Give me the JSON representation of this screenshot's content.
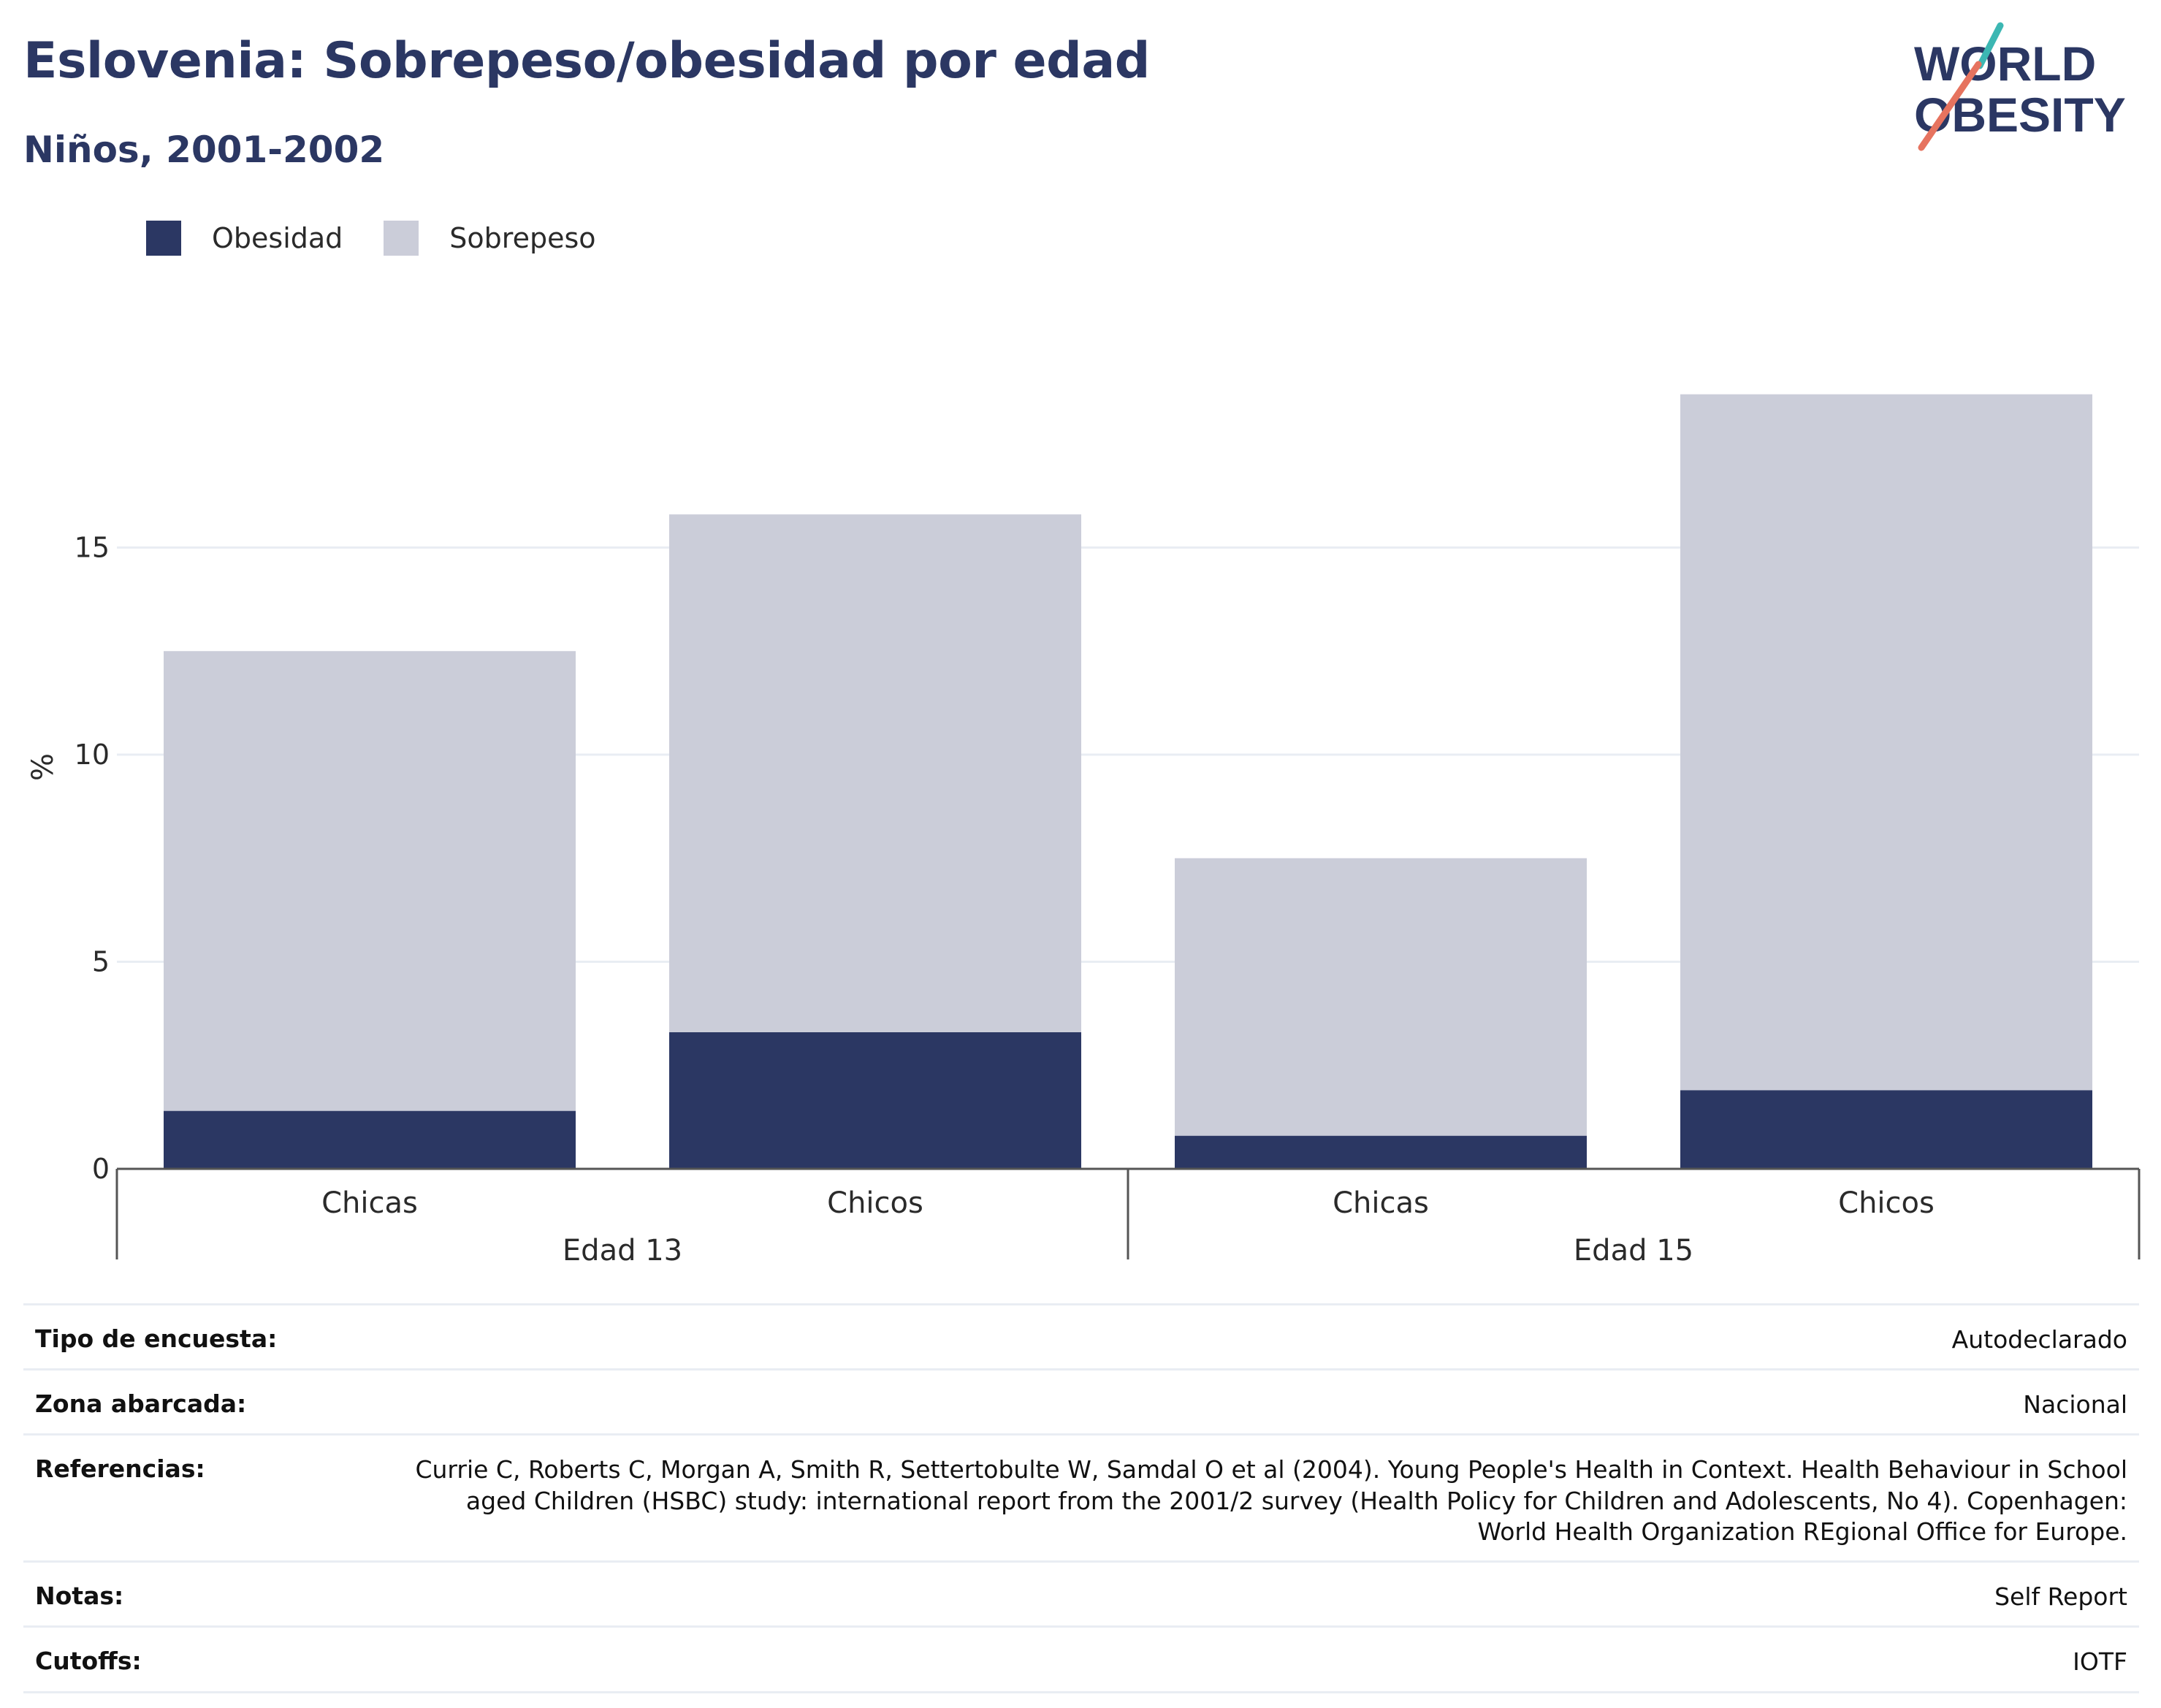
{
  "header": {
    "title": "Eslovenia: Sobrepeso/obesidad por edad",
    "subtitle": "Niños, 2001-2002"
  },
  "logo": {
    "line1": "WORLD",
    "line2": "OBESITY"
  },
  "colors": {
    "obesidad": "#2b3763",
    "sobrepeso": "#cbcdd9",
    "text": "#2b3763",
    "grid": "#e9edf3",
    "logo_teal": "#3cb7b3",
    "logo_coral": "#e6735f"
  },
  "chart_data": {
    "type": "bar",
    "stacked": true,
    "ylabel": "%",
    "ylim": [
      0,
      20
    ],
    "yticks": [
      0,
      5,
      10,
      15
    ],
    "grid": true,
    "legend_position": "top-left",
    "categories": [
      "Chicas",
      "Chicos",
      "Chicas",
      "Chicos"
    ],
    "groups": [
      {
        "label": "Edad 13",
        "categories": [
          "Chicas",
          "Chicos"
        ]
      },
      {
        "label": "Edad 15",
        "categories": [
          "Chicas",
          "Chicos"
        ]
      }
    ],
    "series": [
      {
        "name": "Obesidad",
        "values": [
          1.4,
          3.3,
          0.8,
          1.9
        ]
      },
      {
        "name": "Sobrepeso",
        "values": [
          11.1,
          12.5,
          6.7,
          16.8
        ]
      }
    ]
  },
  "metadata": [
    {
      "key": "Tipo de encuesta:",
      "value": "Autodeclarado"
    },
    {
      "key": "Zona abarcada:",
      "value": "Nacional"
    },
    {
      "key": "Referencias:",
      "value": "Currie C, Roberts C, Morgan A, Smith R, Settertobulte W, Samdal O et al (2004). Young People's Health in Context. Health Behaviour in School aged Children (HSBC) study: international report from the 2001/2 survey (Health Policy for Children and Adolescents, No 4). Copenhagen: World Health Organization REgional Office for Europe."
    },
    {
      "key": "Notas:",
      "value": "Self Report"
    },
    {
      "key": "Cutoffs:",
      "value": "IOTF"
    }
  ]
}
